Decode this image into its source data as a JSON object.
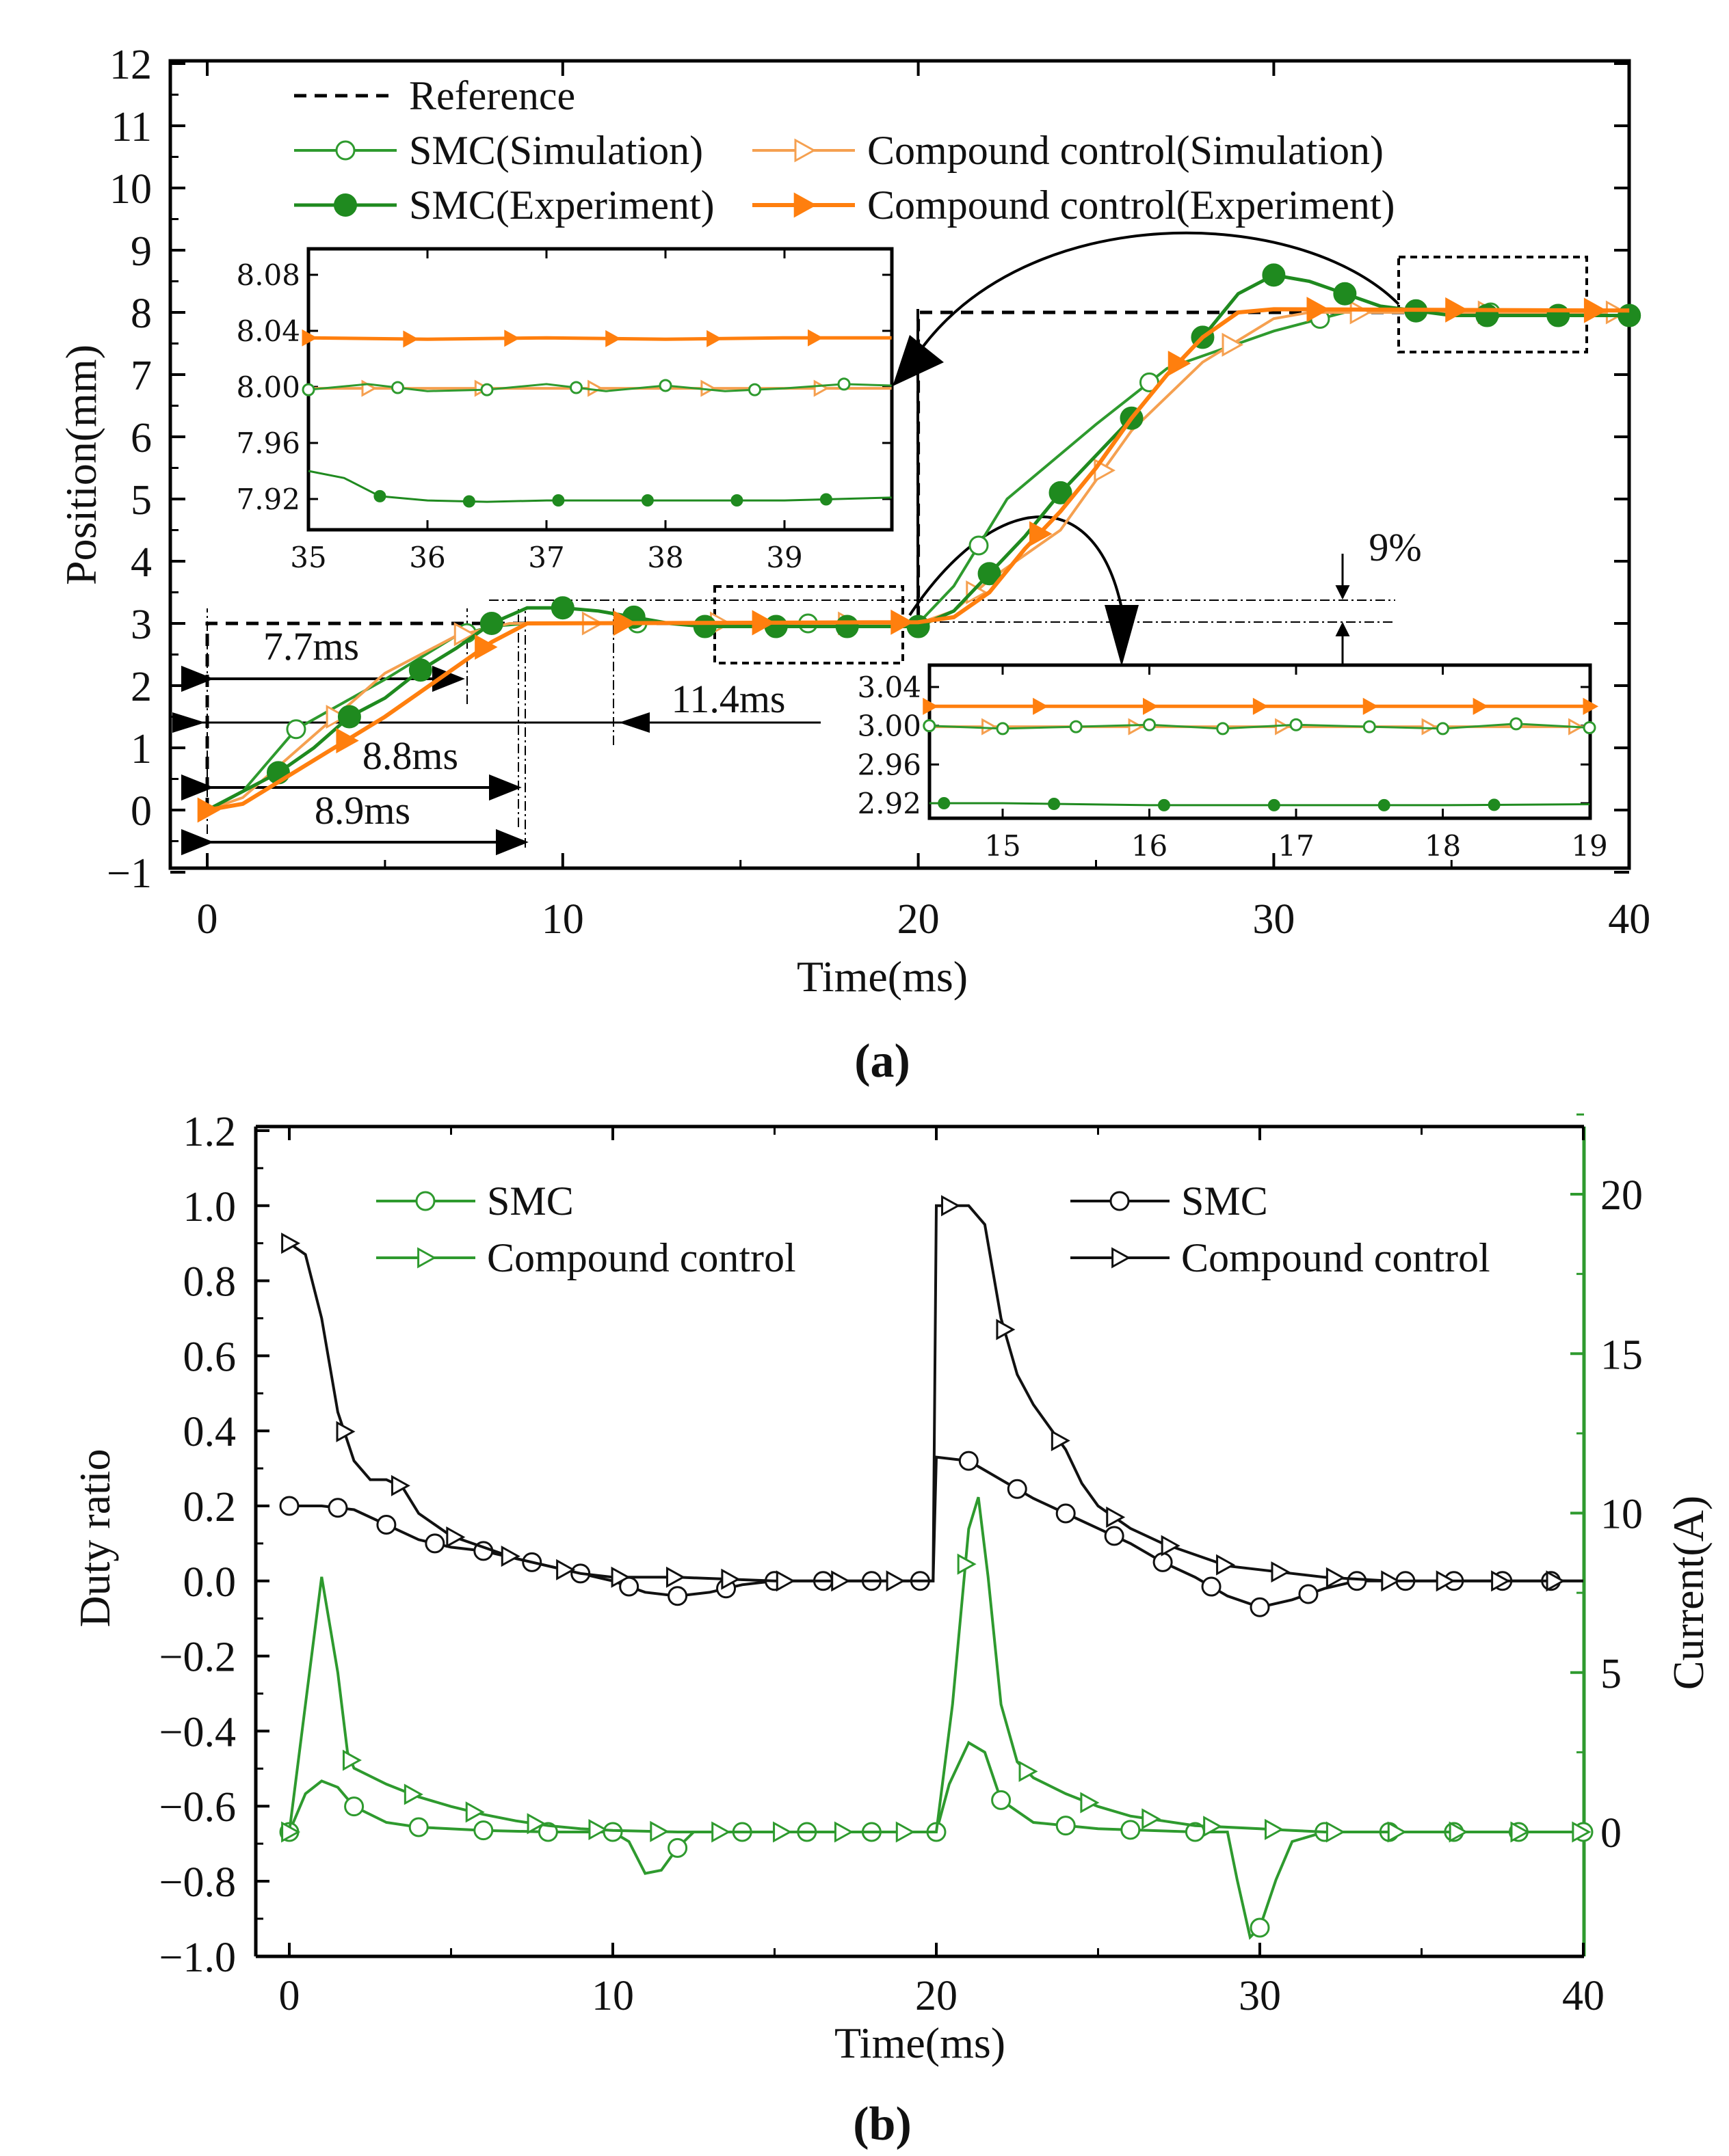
{
  "panel_labels": {
    "a": "(a)",
    "b": "(b)"
  },
  "chart_data": [
    {
      "type": "line",
      "id": "a",
      "xlabel": "Time(ms)",
      "ylabel": "Position(mm)",
      "xlim": [
        0,
        40
      ],
      "ylim": [
        -1,
        12
      ],
      "xticks": [
        "0",
        "10",
        "20",
        "30",
        "40"
      ],
      "yticks": [
        "-1",
        "0",
        "1",
        "2",
        "3",
        "4",
        "5",
        "6",
        "7",
        "8",
        "9",
        "10",
        "11",
        "12"
      ],
      "legend": {
        "placement": "top-left",
        "entries": [
          "Reference",
          "SMC(Simulation)",
          "Compound control(Simulation)",
          "SMC(Experiment)",
          "Compound control(Experiment)"
        ]
      },
      "colors": {
        "smc_sim": "#2e9a2e",
        "smc_exp": "#1f8a1f",
        "cc_sim": "#f5a050",
        "cc_exp": "#ff7f0e",
        "ref": "#000000"
      },
      "series": [
        {
          "name": "Reference",
          "x": [
            0,
            0,
            20,
            20,
            40
          ],
          "y": [
            0,
            3,
            3,
            8,
            8
          ]
        },
        {
          "name": "SMC(Simulation)",
          "x": [
            0,
            1,
            2.5,
            5,
            7,
            8,
            9,
            10,
            14,
            20,
            21,
            22.5,
            25,
            27,
            30,
            32,
            36,
            40
          ],
          "y": [
            0,
            0.3,
            1.3,
            2.1,
            2.8,
            2.95,
            3.0,
            3.0,
            3.0,
            3.0,
            3.6,
            5.0,
            6.2,
            7.1,
            7.7,
            8.0,
            8.0,
            8.0
          ]
        },
        {
          "name": "Compound control(Simulation)",
          "x": [
            0,
            1,
            3,
            5,
            7,
            8.5,
            10,
            20,
            21,
            22,
            24,
            26,
            28,
            30,
            31,
            40
          ],
          "y": [
            0,
            0.2,
            1.2,
            2.2,
            2.8,
            3.0,
            3.0,
            3.0,
            3.2,
            3.7,
            4.5,
            6.1,
            7.2,
            7.9,
            8.0,
            8.0
          ]
        },
        {
          "name": "SMC(Experiment)",
          "x": [
            0,
            2,
            3,
            4,
            5,
            6,
            7,
            8,
            9,
            10,
            11,
            12,
            13,
            14,
            20,
            21,
            22,
            23,
            24,
            25,
            26,
            27,
            28,
            29,
            30,
            31,
            32,
            33,
            35,
            40
          ],
          "y": [
            0,
            0.6,
            1.0,
            1.5,
            1.8,
            2.25,
            2.6,
            3.0,
            3.25,
            3.25,
            3.2,
            3.1,
            3.0,
            2.95,
            2.95,
            3.2,
            3.8,
            4.4,
            5.1,
            5.7,
            6.3,
            7.0,
            7.6,
            8.3,
            8.6,
            8.5,
            8.3,
            8.1,
            7.95,
            7.95
          ]
        },
        {
          "name": "Compound control(Experiment)",
          "x": [
            0,
            1,
            3,
            5,
            6,
            7,
            8,
            9,
            20,
            21,
            22,
            23,
            24,
            25,
            26,
            27,
            28,
            29,
            30,
            40
          ],
          "y": [
            0,
            0.1,
            0.8,
            1.5,
            1.9,
            2.3,
            2.7,
            3.0,
            3.02,
            3.1,
            3.5,
            4.2,
            4.8,
            5.5,
            6.3,
            7.0,
            7.6,
            8.0,
            8.05,
            8.03
          ]
        }
      ],
      "annotations": [
        "7.7ms",
        "8.8ms",
        "8.9ms",
        "11.4ms",
        "9%"
      ],
      "insets": [
        {
          "xlim": [
            35,
            39.9
          ],
          "ylim": [
            7.9,
            8.1
          ],
          "xticks": [
            "35",
            "36",
            "37",
            "38",
            "39"
          ],
          "yticks": [
            "8.08",
            "8.04",
            "8.00",
            "7.96",
            "7.92"
          ],
          "series": [
            {
              "name": "Compound control(Experiment)",
              "x": [
                35,
                36,
                37,
                38,
                39,
                39.9
              ],
              "y": [
                8.035,
                8.034,
                8.035,
                8.034,
                8.035,
                8.035
              ]
            },
            {
              "name": "Compound control(Simulation)",
              "x": [
                35,
                39.9
              ],
              "y": [
                7.999,
                7.999
              ]
            },
            {
              "name": "SMC(Simulation)",
              "x": [
                35,
                35.5,
                36,
                36.5,
                37,
                37.5,
                38,
                38.5,
                39,
                39.5,
                39.9
              ],
              "y": [
                7.998,
                8.002,
                7.997,
                7.998,
                8.002,
                7.997,
                8.001,
                7.997,
                7.999,
                8.002,
                8.001
              ]
            },
            {
              "name": "SMC(Experiment)",
              "x": [
                35,
                35.3,
                35.6,
                36,
                36.5,
                37,
                38,
                39,
                39.9
              ],
              "y": [
                7.94,
                7.935,
                7.922,
                7.919,
                7.918,
                7.919,
                7.919,
                7.919,
                7.921
              ]
            }
          ]
        },
        {
          "xlim": [
            14.5,
            19
          ],
          "ylim": [
            2.91,
            3.05
          ],
          "xticks": [
            "15",
            "16",
            "17",
            "18",
            "19"
          ],
          "yticks": [
            "3.04",
            "3.00",
            "2.96",
            "2.92"
          ],
          "series": [
            {
              "name": "Compound control(Experiment)",
              "x": [
                14.5,
                19
              ],
              "y": [
                3.02,
                3.02
              ]
            },
            {
              "name": "Compound control(Simulation)",
              "x": [
                14.5,
                19
              ],
              "y": [
                2.999,
                2.999
              ]
            },
            {
              "name": "SMC(Simulation)",
              "x": [
                14.5,
                15,
                15.5,
                16,
                16.5,
                17,
                17.5,
                18,
                18.5,
                19
              ],
              "y": [
                3.0,
                2.997,
                2.999,
                3.001,
                2.997,
                3.001,
                2.999,
                2.997,
                3.002,
                2.998
              ]
            },
            {
              "name": "SMC(Experiment)",
              "x": [
                14.5,
                15,
                16,
                17,
                18,
                19
              ],
              "y": [
                2.92,
                2.92,
                2.918,
                2.918,
                2.918,
                2.919
              ]
            }
          ]
        }
      ]
    },
    {
      "type": "line",
      "id": "b",
      "xlabel": "Time(ms)",
      "ylabel": "Duty ratio",
      "y2label": "Current(A)",
      "xlim": [
        0,
        40
      ],
      "ylim": [
        -1.0,
        1.2
      ],
      "y2lim": [
        -2.5,
        21.5
      ],
      "xticks": [
        "0",
        "10",
        "20",
        "30",
        "40"
      ],
      "yticks": [
        "1.2",
        "1.0",
        "0.8",
        "0.6",
        "0.4",
        "0.2",
        "0.0",
        "-0.2",
        "-0.4",
        "-0.6",
        "-0.8",
        "-1.0"
      ],
      "y2ticks": [
        "20",
        "15",
        "10",
        "5",
        "0"
      ],
      "legend": {
        "left": [
          "SMC",
          "Compound control"
        ],
        "right": [
          "SMC",
          "Compound control"
        ]
      },
      "colors": {
        "duty": "#111111",
        "current": "#2e9a2e"
      },
      "series": [
        {
          "name": "SMC",
          "axis": "duty",
          "x": [
            0,
            1,
            2,
            3,
            4,
            5,
            6,
            7,
            8,
            9,
            10,
            11,
            12,
            13,
            14,
            15,
            19.9,
            20,
            21,
            22,
            23,
            24,
            25,
            26,
            27,
            28,
            29,
            30,
            31,
            32,
            33,
            40
          ],
          "y": [
            0.2,
            0.2,
            0.19,
            0.15,
            0.11,
            0.09,
            0.08,
            0.06,
            0.04,
            0.02,
            0.0,
            -0.03,
            -0.04,
            -0.03,
            -0.01,
            0,
            0,
            0.33,
            0.32,
            0.27,
            0.22,
            0.18,
            0.14,
            0.1,
            0.05,
            0.01,
            -0.04,
            -0.07,
            -0.05,
            -0.02,
            0,
            0
          ]
        },
        {
          "name": "Compound control",
          "axis": "duty",
          "x": [
            0,
            0.5,
            1,
            1.5,
            2,
            2.5,
            3,
            3.5,
            4,
            5,
            6,
            7,
            8,
            9,
            10,
            12,
            15,
            19.9,
            20,
            21,
            21.5,
            22,
            22.5,
            23,
            24,
            24.5,
            25,
            26,
            27,
            28,
            29,
            30,
            31,
            32,
            34,
            40
          ],
          "y": [
            0.9,
            0.87,
            0.7,
            0.45,
            0.32,
            0.27,
            0.27,
            0.25,
            0.18,
            0.12,
            0.09,
            0.06,
            0.04,
            0.02,
            0.01,
            0.01,
            0,
            0,
            1.0,
            1.0,
            0.95,
            0.7,
            0.55,
            0.47,
            0.35,
            0.26,
            0.2,
            0.14,
            0.1,
            0.07,
            0.04,
            0.03,
            0.02,
            0.01,
            0,
            0
          ]
        },
        {
          "name": "SMC",
          "axis": "current",
          "x": [
            0,
            0.5,
            1,
            1.5,
            2,
            3,
            4,
            6,
            8,
            10,
            10.5,
            11,
            11.5,
            12,
            12.5,
            20,
            20.4,
            21,
            21.5,
            22,
            23,
            25,
            28,
            29,
            29.3,
            29.7,
            30,
            30.5,
            31,
            32,
            40
          ],
          "y": [
            0,
            1.2,
            1.6,
            1.4,
            0.8,
            0.3,
            0.15,
            0.05,
            0,
            0,
            -0.3,
            -1.3,
            -1.2,
            -0.5,
            0,
            0,
            1.5,
            2.8,
            2.5,
            1.0,
            0.3,
            0.1,
            0,
            0,
            -1.5,
            -3.3,
            -3.0,
            -1.5,
            -0.3,
            0,
            0
          ]
        },
        {
          "name": "Compound control",
          "axis": "current",
          "x": [
            0,
            0.5,
            1,
            1.5,
            1.8,
            2,
            3,
            4,
            5,
            6,
            7,
            8,
            9,
            10,
            12,
            20,
            20.5,
            21,
            21.3,
            21.6,
            22,
            22.5,
            23,
            24,
            25,
            26,
            27,
            28,
            30,
            31,
            32,
            40
          ],
          "y": [
            0,
            4,
            8.0,
            5,
            2.5,
            2.0,
            1.5,
            1.1,
            0.8,
            0.55,
            0.35,
            0.2,
            0.1,
            0.05,
            0,
            0,
            4,
            9.5,
            10.5,
            8,
            4,
            2.2,
            1.7,
            1.2,
            0.8,
            0.5,
            0.35,
            0.2,
            0.1,
            0.05,
            0,
            0
          ]
        }
      ]
    }
  ]
}
